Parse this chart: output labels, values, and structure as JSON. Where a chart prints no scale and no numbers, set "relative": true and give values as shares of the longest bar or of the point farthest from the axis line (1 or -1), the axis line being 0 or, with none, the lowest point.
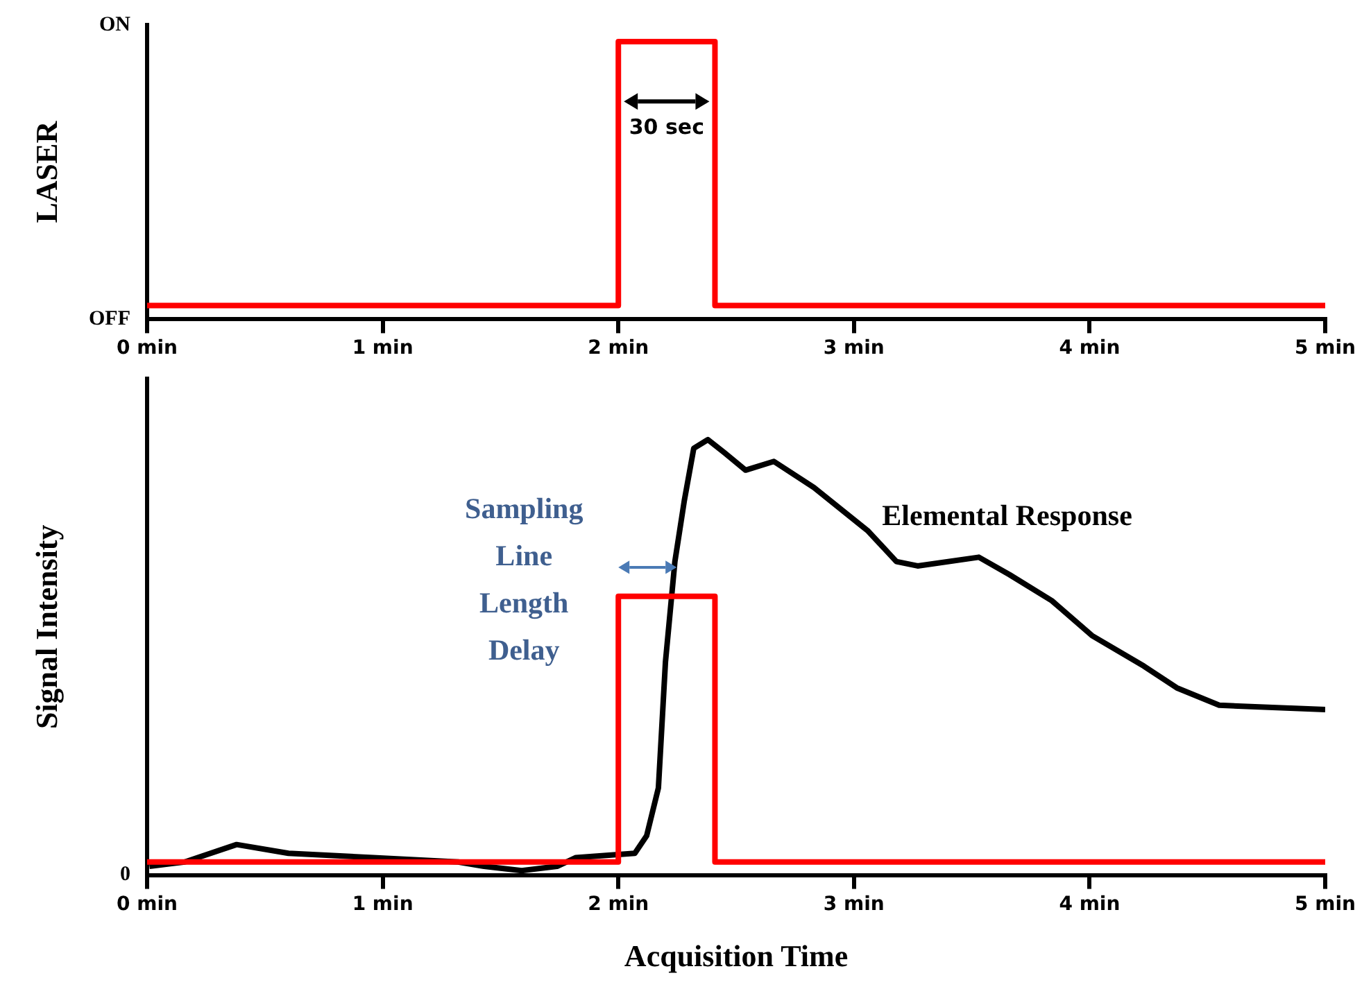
{
  "chart_data": [
    {
      "type": "line",
      "ylabel": "LASER",
      "xlim": [
        0,
        5
      ],
      "xticks": [
        {
          "value": 0,
          "label": "0 min"
        },
        {
          "value": 1,
          "label": "1 min"
        },
        {
          "value": 2,
          "label": "2 min"
        },
        {
          "value": 3,
          "label": "3 min"
        },
        {
          "value": 4,
          "label": "4 min"
        },
        {
          "value": 5,
          "label": "5 min"
        }
      ],
      "relative": true,
      "grid": false,
      "legend": false,
      "marker": "none",
      "series": [
        {
          "color": "#ff0000",
          "x": [
            0,
            2,
            2,
            2.41,
            2.41,
            5
          ],
          "values": [
            0.05,
            0.05,
            1,
            1,
            0.05,
            0.05
          ]
        }
      ],
      "annotations": [
        "30 sec",
        "ON",
        "OFF"
      ]
    },
    {
      "type": "line",
      "ylabel": "Signal Intensity",
      "xlabel": "Acquisition Time",
      "relative": true,
      "xlim": [
        0,
        5
      ],
      "xticks": [
        {
          "value": 0,
          "label": "0 min"
        },
        {
          "value": 1,
          "label": "1 min"
        },
        {
          "value": 2,
          "label": "2 min"
        },
        {
          "value": 3,
          "label": "3 min"
        },
        {
          "value": 4,
          "label": "4 min"
        },
        {
          "value": 5,
          "label": "5 min"
        }
      ],
      "grid": false,
      "legend": false,
      "marker": "none",
      "series": [
        {
          "color": "#ff0000",
          "x": [
            0,
            2,
            2,
            2.41,
            2.41,
            5
          ],
          "values": [
            0.03,
            0.03,
            0.64,
            0.64,
            0.03,
            0.03
          ]
        },
        {
          "color": "#000000",
          "x": [
            0.01,
            0.16,
            0.38,
            0.6,
            0.96,
            1.32,
            1.43,
            1.59,
            1.74,
            1.82,
            2.07,
            2.12,
            2.17,
            2.2,
            2.24,
            2.28,
            2.32,
            2.38,
            2.45,
            2.54,
            2.66,
            2.83,
            3.06,
            3.18,
            3.27,
            3.53,
            3.66,
            3.84,
            4.01,
            4.23,
            4.37,
            4.55,
            5
          ],
          "values": [
            0.02,
            0.03,
            0.07,
            0.05,
            0.04,
            0.03,
            0.02,
            0.01,
            0.02,
            0.04,
            0.05,
            0.09,
            0.2,
            0.49,
            0.72,
            0.86,
            0.98,
            1,
            0.97,
            0.93,
            0.95,
            0.89,
            0.79,
            0.72,
            0.71,
            0.73,
            0.69,
            0.63,
            0.55,
            0.48,
            0.43,
            0.39,
            0.38
          ]
        }
      ],
      "annotations": [
        "Sampling\nLine\nLength\nDelay",
        "Elemental Response",
        "0"
      ]
    }
  ]
}
